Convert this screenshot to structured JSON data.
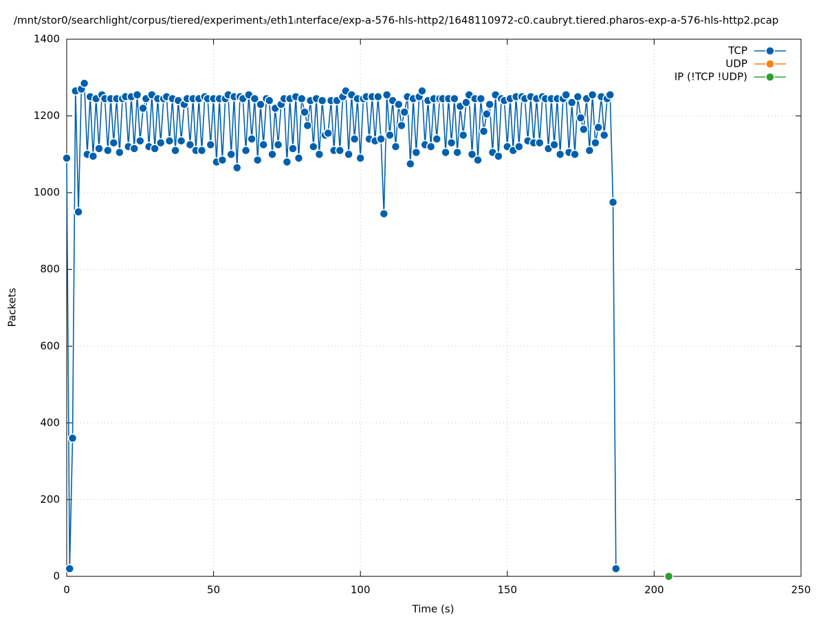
{
  "chart_data": {
    "type": "line",
    "title": "/mnt/stor0/searchlight/corpus/tiered/experiment₃/eth1ᵢnterface/exp-a-576-hls-http2/1648110972-c0.caubryt.tiered.pharos-exp-a-576-hls-http2.pcap",
    "xlabel": "Time (s)",
    "ylabel": "Packets",
    "xlim": [
      0,
      250
    ],
    "xticks": [
      0,
      50,
      100,
      150,
      200,
      250
    ],
    "ylim": [
      0,
      1400
    ],
    "yticks": [
      0,
      200,
      400,
      600,
      800,
      1000,
      1200,
      1400
    ],
    "grid": true,
    "legend": "top-right",
    "series": [
      {
        "name": "TCP",
        "color": "#0060ad",
        "x": [
          0,
          1,
          2,
          3,
          4,
          5,
          6,
          7,
          8,
          9,
          10,
          11,
          12,
          13,
          14,
          15,
          16,
          17,
          18,
          19,
          20,
          21,
          22,
          23,
          24,
          25,
          26,
          27,
          28,
          29,
          30,
          31,
          32,
          33,
          34,
          35,
          36,
          37,
          38,
          39,
          40,
          41,
          42,
          43,
          44,
          45,
          46,
          47,
          48,
          49,
          50,
          51,
          52,
          53,
          54,
          55,
          56,
          57,
          58,
          59,
          60,
          61,
          62,
          63,
          64,
          65,
          66,
          67,
          68,
          69,
          70,
          71,
          72,
          73,
          74,
          75,
          76,
          77,
          78,
          79,
          80,
          81,
          82,
          83,
          84,
          85,
          86,
          87,
          88,
          89,
          90,
          91,
          92,
          93,
          94,
          95,
          96,
          97,
          98,
          99,
          100,
          101,
          102,
          103,
          104,
          105,
          106,
          107,
          108,
          109,
          110,
          111,
          112,
          113,
          114,
          115,
          116,
          117,
          118,
          119,
          120,
          121,
          122,
          123,
          124,
          125,
          126,
          127,
          128,
          129,
          130,
          131,
          132,
          133,
          134,
          135,
          136,
          137,
          138,
          139,
          140,
          141,
          142,
          143,
          144,
          145,
          146,
          147,
          148,
          149,
          150,
          151,
          152,
          153,
          154,
          155,
          156,
          157,
          158,
          159,
          160,
          161,
          162,
          163,
          164,
          165,
          166,
          167,
          168,
          169,
          170,
          171,
          172,
          173,
          174,
          175,
          176,
          177,
          178,
          179,
          180,
          181,
          182,
          183,
          184,
          185,
          186,
          187
        ],
        "values": [
          1090,
          20,
          360,
          1265,
          950,
          1270,
          1285,
          1100,
          1250,
          1095,
          1245,
          1115,
          1255,
          1245,
          1110,
          1245,
          1130,
          1245,
          1105,
          1245,
          1250,
          1120,
          1250,
          1115,
          1255,
          1135,
          1220,
          1245,
          1120,
          1255,
          1115,
          1245,
          1130,
          1245,
          1250,
          1135,
          1245,
          1110,
          1240,
          1135,
          1230,
          1245,
          1125,
          1245,
          1110,
          1245,
          1110,
          1250,
          1245,
          1125,
          1245,
          1080,
          1245,
          1085,
          1245,
          1255,
          1100,
          1250,
          1065,
          1250,
          1245,
          1110,
          1255,
          1140,
          1245,
          1085,
          1230,
          1125,
          1245,
          1240,
          1100,
          1220,
          1125,
          1230,
          1245,
          1080,
          1245,
          1115,
          1250,
          1090,
          1245,
          1210,
          1175,
          1240,
          1120,
          1245,
          1100,
          1240,
          1150,
          1155,
          1240,
          1110,
          1240,
          1110,
          1250,
          1265,
          1100,
          1255,
          1140,
          1245,
          1090,
          1245,
          1250,
          1140,
          1250,
          1135,
          1250,
          1140,
          945,
          1255,
          1150,
          1240,
          1120,
          1230,
          1175,
          1210,
          1250,
          1075,
          1245,
          1105,
          1250,
          1265,
          1125,
          1240,
          1120,
          1245,
          1140,
          1245,
          1245,
          1105,
          1245,
          1130,
          1245,
          1105,
          1225,
          1150,
          1235,
          1255,
          1100,
          1245,
          1085,
          1245,
          1160,
          1205,
          1230,
          1105,
          1255,
          1095,
          1245,
          1240,
          1120,
          1245,
          1110,
          1250,
          1120,
          1250,
          1245,
          1135,
          1250,
          1130,
          1245,
          1130,
          1250,
          1245,
          1115,
          1245,
          1125,
          1245,
          1100,
          1245,
          1255,
          1105,
          1235,
          1100,
          1250,
          1195,
          1165,
          1245,
          1110,
          1255,
          1130,
          1170,
          1250,
          1150,
          1245,
          1255,
          975,
          20
        ]
      },
      {
        "name": "UDP",
        "color": "#ff7f0e",
        "x": [],
        "values": []
      },
      {
        "name": "IP (!TCP  !UDP)",
        "color": "#2ca02c",
        "x": [
          205
        ],
        "values": [
          0
        ]
      }
    ]
  }
}
